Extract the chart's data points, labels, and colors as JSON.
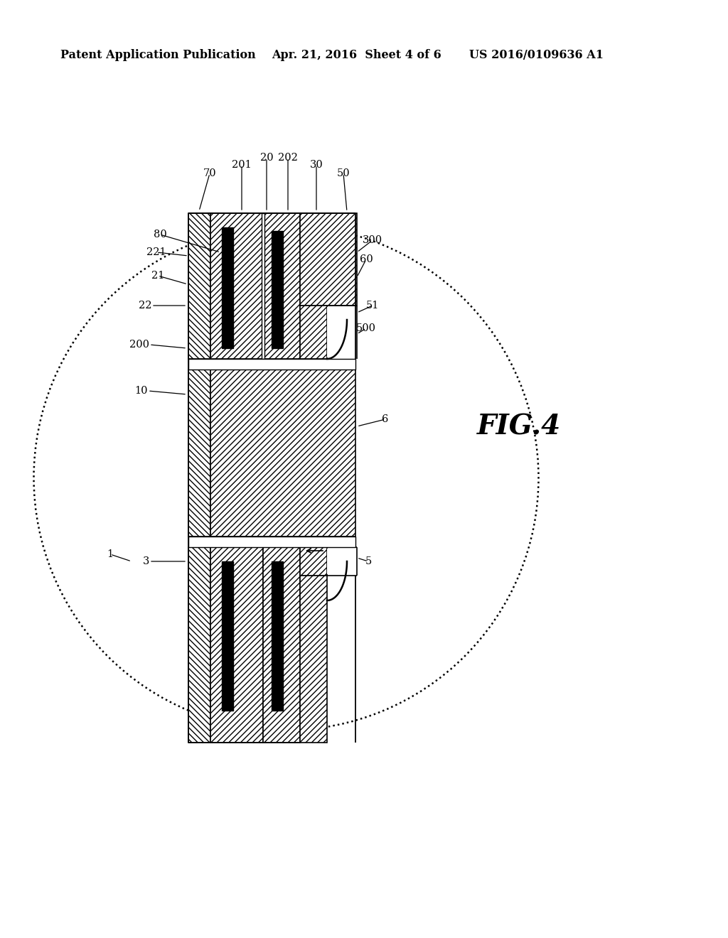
{
  "header_left": "Patent Application Publication",
  "header_mid": "Apr. 21, 2016  Sheet 4 of 6",
  "header_right": "US 2016/0109636 A1",
  "fig_label": "FIG.4",
  "bg_color": "#ffffff"
}
